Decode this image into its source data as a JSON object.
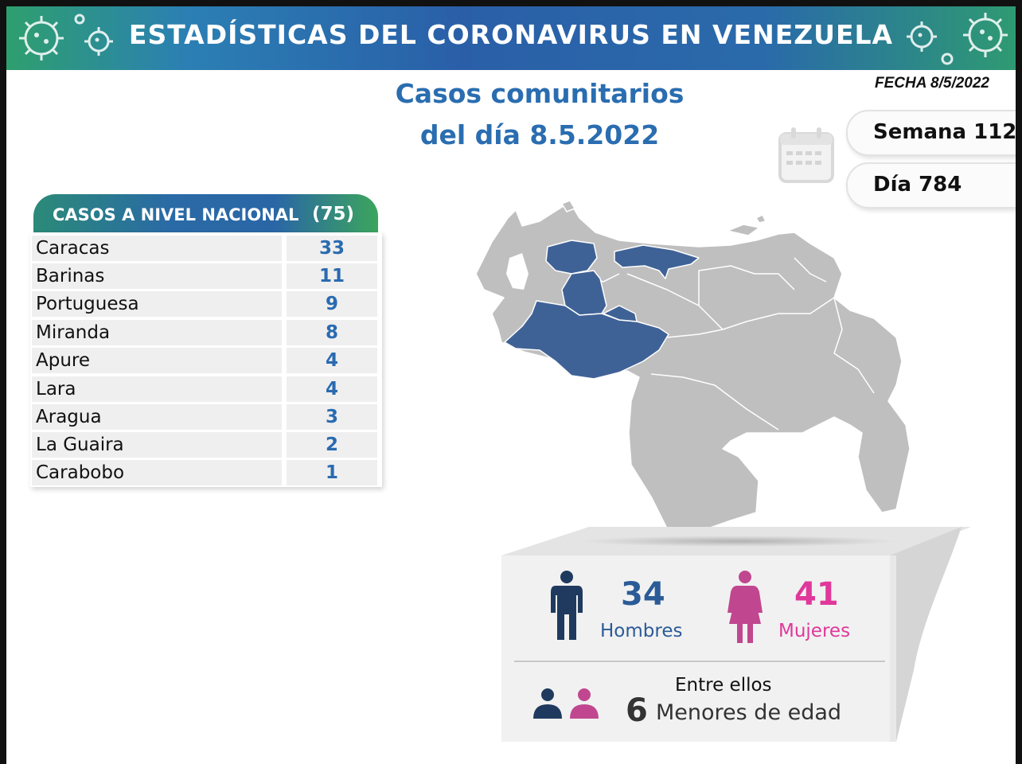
{
  "banner": {
    "title": "ESTADÍSTICAS DEL CORONAVIRUS EN VENEZUELA"
  },
  "subtitle": {
    "line1": "Casos comunitarios",
    "line2": "del día 8.5.2022"
  },
  "date": "FECHA 8/5/2022",
  "week": "Semana 112",
  "day": "Día 784",
  "table": {
    "header_label": "CASOS A NIVEL NACIONAL",
    "header_total": "(75)",
    "rows": [
      {
        "name": "Caracas",
        "value": "33"
      },
      {
        "name": "Barinas",
        "value": "11"
      },
      {
        "name": "Portuguesa",
        "value": "9"
      },
      {
        "name": "Miranda",
        "value": "8"
      },
      {
        "name": "Apure",
        "value": "4"
      },
      {
        "name": "Lara",
        "value": "4"
      },
      {
        "name": "Aragua",
        "value": "3"
      },
      {
        "name": "La Guaira",
        "value": "2"
      },
      {
        "name": "Carabobo",
        "value": "1"
      }
    ]
  },
  "stats": {
    "men_count": "34",
    "men_label": "Hombres",
    "women_count": "41",
    "women_label": "Mujeres",
    "between": "Entre ellos",
    "minors_count": "6",
    "minors_label": "Menores de edad"
  },
  "colors": {
    "highlight_state": "#3f6296",
    "other_state": "#bfbfbf",
    "men": "#2b5b97",
    "women": "#e0389a"
  },
  "icons": [
    "virus-icon",
    "calendar-icon",
    "man-icon",
    "woman-icon",
    "children-icon"
  ]
}
